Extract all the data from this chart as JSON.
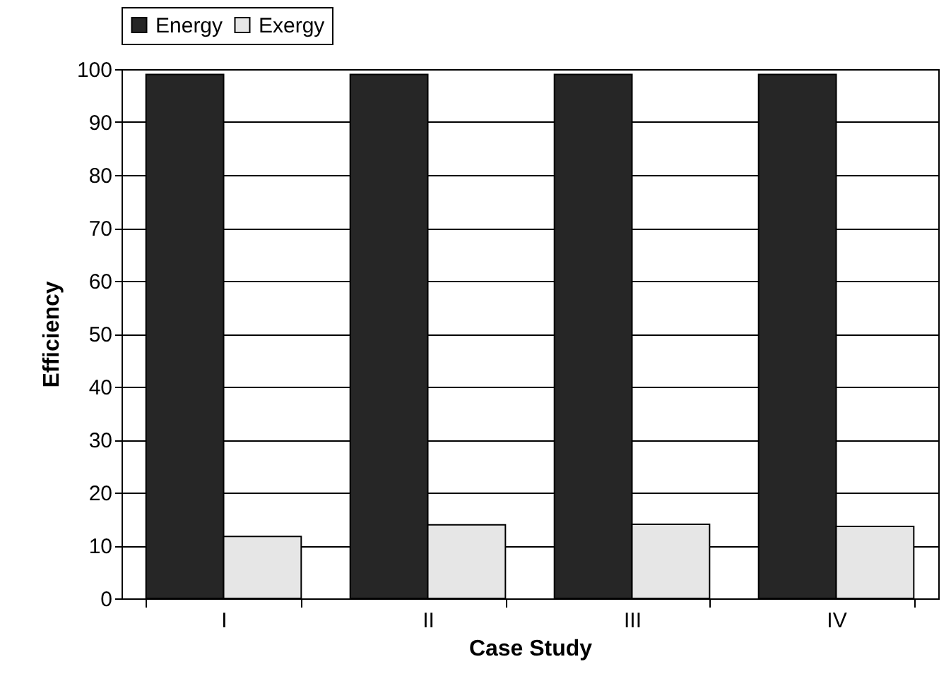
{
  "chart_data": {
    "type": "bar",
    "xlabel": "Case Study",
    "ylabel": "Efficiency",
    "categories": [
      "I",
      "II",
      "III",
      "IV"
    ],
    "series": [
      {
        "name": "Energy",
        "color": "#262626",
        "values": [
          99,
          99,
          99,
          99
        ]
      },
      {
        "name": "Exergy",
        "color": "#e6e6e6",
        "values": [
          11.7,
          13.9,
          14,
          13.6
        ]
      }
    ],
    "ylim": [
      0,
      100
    ],
    "yticks": [
      0,
      10,
      20,
      30,
      40,
      50,
      60,
      70,
      80,
      90,
      100
    ],
    "grid": "y",
    "legend": "top left"
  }
}
